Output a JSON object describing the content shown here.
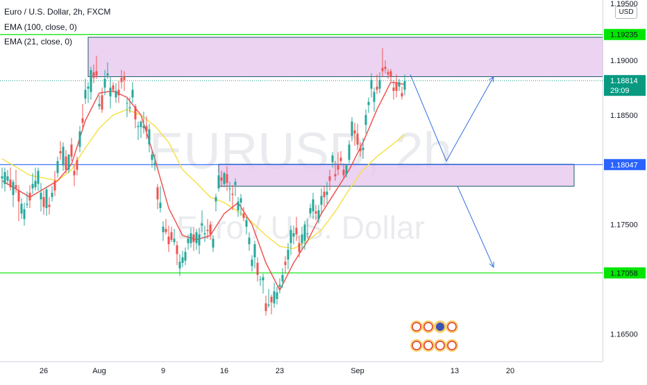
{
  "chart_data": {
    "type": "candlestick",
    "title": "Euro / U.S. Dollar, 2h, FXCM",
    "watermark_symbol": "EURUSD, 2h",
    "watermark_name": "Euro / U.S. Dollar",
    "currency": "USD",
    "indicators": [
      {
        "name": "EMA (100, close, 0)",
        "color": "#f5e14a"
      },
      {
        "name": "EMA (21, close, 0)",
        "color": "#ef5350"
      }
    ],
    "y_axis": {
      "range": [
        1.1625,
        1.1955
      ],
      "ticks": [
        "1.19000",
        "1.18500",
        "1.17500",
        "1.16500"
      ],
      "top_partial_label": "1.19500"
    },
    "x_axis": {
      "ticks": [
        {
          "label": "26",
          "idx": 15
        },
        {
          "label": "Aug",
          "idx": 35
        },
        {
          "label": "9",
          "idx": 58
        },
        {
          "label": "16",
          "idx": 80
        },
        {
          "label": "23",
          "idx": 100
        },
        {
          "label": "Sep",
          "idx": 128
        },
        {
          "label": "13",
          "idx": 163
        },
        {
          "label": "20",
          "idx": 183
        }
      ]
    },
    "horizontal_levels": [
      {
        "value": 1.19235,
        "label": "1.19235",
        "color": "#00e600"
      },
      {
        "value": 1.17058,
        "label": "1.17058",
        "color": "#00e600"
      },
      {
        "value": 1.18047,
        "label": "1.18047",
        "color": "#2962ff"
      }
    ],
    "current_price": {
      "value": 1.18814,
      "label": "1.18814",
      "countdown": "29:09",
      "color": "#089981"
    },
    "zones": [
      {
        "start_idx": 31,
        "end_idx": 220,
        "top": 1.1921,
        "bottom": 1.1885,
        "color": "#e7c8ee"
      },
      {
        "start_idx": 78,
        "end_idx": 206,
        "top": 1.1805,
        "bottom": 1.1785,
        "color": "#e7c8ee"
      }
    ],
    "projections": [
      {
        "points": [
          [
            147,
            1.1887
          ],
          [
            160,
            1.1808
          ],
          [
            177,
            1.1885
          ]
        ],
        "color": "#2f6fe0"
      },
      {
        "points": [
          [
            164,
            1.1785
          ],
          [
            177,
            1.1711
          ]
        ],
        "color": "#2f6fe0"
      }
    ],
    "candles": [
      [
        0.0,
        1.1792,
        1.1802,
        1.1783,
        1.1794
      ],
      [
        1.0,
        1.1787,
        1.1802,
        1.178,
        1.1798
      ],
      [
        2.0,
        1.179,
        1.18,
        1.1786,
        1.1794
      ],
      [
        3.0,
        1.1791,
        1.1802,
        1.1781,
        1.1784
      ],
      [
        4.0,
        1.1777,
        1.1791,
        1.1766,
        1.1789
      ],
      [
        5.0,
        1.1786,
        1.18,
        1.1779,
        1.1783
      ],
      [
        6.0,
        1.1781,
        1.1786,
        1.1753,
        1.1771
      ],
      [
        7.0,
        1.176,
        1.1774,
        1.1755,
        1.1769
      ],
      [
        8.0,
        1.1755,
        1.177,
        1.1749,
        1.1764
      ],
      [
        9.0,
        1.1768,
        1.178,
        1.1765,
        1.1769
      ],
      [
        10.0,
        1.1779,
        1.1786,
        1.1765,
        1.1772
      ],
      [
        11.0,
        1.1783,
        1.1797,
        1.1778,
        1.1787
      ],
      [
        12.0,
        1.1784,
        1.1802,
        1.1781,
        1.179
      ],
      [
        13.0,
        1.1787,
        1.1802,
        1.1781,
        1.1799
      ],
      [
        14.0,
        1.1773,
        1.1788,
        1.1762,
        1.1779
      ],
      [
        15.0,
        1.1775,
        1.1781,
        1.1759,
        1.1766
      ],
      [
        16.0,
        1.1765,
        1.1784,
        1.1758,
        1.1782
      ],
      [
        17.0,
        1.1768,
        1.1775,
        1.1759,
        1.1766
      ],
      [
        18.0,
        1.1775,
        1.1785,
        1.1771,
        1.1779
      ],
      [
        19.0,
        1.179,
        1.1799,
        1.1776,
        1.1781
      ],
      [
        20.0,
        1.1797,
        1.1812,
        1.1793,
        1.1808
      ],
      [
        21.0,
        1.1817,
        1.1826,
        1.1809,
        1.1815
      ],
      [
        22.0,
        1.1804,
        1.1825,
        1.1799,
        1.1821
      ],
      [
        23.0,
        1.1812,
        1.1818,
        1.1797,
        1.18
      ],
      [
        24.0,
        1.18,
        1.1814,
        1.1797,
        1.1814
      ],
      [
        25.0,
        1.1823,
        1.1829,
        1.1808,
        1.1812
      ],
      [
        26.0,
        1.1799,
        1.1805,
        1.1785,
        1.1795
      ],
      [
        27.0,
        1.1809,
        1.1812,
        1.1795,
        1.18
      ],
      [
        28.0,
        1.1821,
        1.184,
        1.1816,
        1.1835
      ],
      [
        29.0,
        1.1847,
        1.186,
        1.1838,
        1.1843
      ],
      [
        30.0,
        1.1865,
        1.1883,
        1.186,
        1.1873
      ],
      [
        31.0,
        1.1874,
        1.188,
        1.1861,
        1.1876
      ],
      [
        32.0,
        1.1871,
        1.1894,
        1.1864,
        1.1891
      ],
      [
        33.0,
        1.1889,
        1.1896,
        1.1879,
        1.1884
      ],
      [
        34.0,
        1.189,
        1.1904,
        1.1883,
        1.1886
      ],
      [
        35.0,
        1.1858,
        1.1868,
        1.1855,
        1.186
      ],
      [
        36.0,
        1.1868,
        1.1875,
        1.1852,
        1.1855
      ],
      [
        37.0,
        1.1875,
        1.1891,
        1.1868,
        1.1883
      ],
      [
        38.0,
        1.1886,
        1.1898,
        1.1883,
        1.1888
      ],
      [
        39.0,
        1.1867,
        1.1885,
        1.1856,
        1.1875
      ],
      [
        40.0,
        1.1877,
        1.188,
        1.187,
        1.1873
      ],
      [
        41.0,
        1.1866,
        1.1879,
        1.1861,
        1.1872
      ],
      [
        42.0,
        1.1873,
        1.1881,
        1.1861,
        1.1868
      ],
      [
        43.0,
        1.1884,
        1.1891,
        1.1874,
        1.188
      ],
      [
        44.0,
        1.1885,
        1.189,
        1.1872,
        1.1882
      ],
      [
        45.0,
        1.1861,
        1.1865,
        1.1848,
        1.1861
      ],
      [
        46.0,
        1.1856,
        1.1866,
        1.1852,
        1.1857
      ],
      [
        47.0,
        1.1866,
        1.188,
        1.1861,
        1.1873
      ],
      [
        48.0,
        1.1858,
        1.186,
        1.1838,
        1.1846
      ],
      [
        49.0,
        1.1839,
        1.1844,
        1.1827,
        1.184
      ],
      [
        50.0,
        1.1839,
        1.1845,
        1.1829,
        1.1844
      ],
      [
        51.0,
        1.1838,
        1.1853,
        1.1833,
        1.184
      ],
      [
        52.0,
        1.184,
        1.1849,
        1.1828,
        1.1835
      ],
      [
        53.0,
        1.1823,
        1.1842,
        1.1816,
        1.1837
      ],
      [
        54.0,
        1.1809,
        1.1818,
        1.1802,
        1.1814
      ],
      [
        55.0,
        1.1804,
        1.1814,
        1.1799,
        1.1806
      ],
      [
        56.0,
        1.1784,
        1.1787,
        1.1764,
        1.1773
      ],
      [
        57.0,
        1.1765,
        1.1785,
        1.1761,
        1.177
      ],
      [
        58.0,
        1.1743,
        1.1753,
        1.1735,
        1.1748
      ],
      [
        59.0,
        1.1746,
        1.1755,
        1.1741,
        1.1743
      ],
      [
        60.0,
        1.1739,
        1.1749,
        1.1725,
        1.1732
      ],
      [
        61.0,
        1.1743,
        1.1748,
        1.1734,
        1.1736
      ],
      [
        62.0,
        1.1734,
        1.1746,
        1.1731,
        1.1737
      ],
      [
        63.0,
        1.1731,
        1.1735,
        1.1713,
        1.1723
      ],
      [
        64.0,
        1.171,
        1.1723,
        1.1703,
        1.1716
      ],
      [
        65.0,
        1.1715,
        1.1726,
        1.1711,
        1.172
      ],
      [
        66.0,
        1.1717,
        1.1729,
        1.1713,
        1.1725
      ],
      [
        67.0,
        1.1733,
        1.1741,
        1.1727,
        1.1737
      ],
      [
        68.0,
        1.1733,
        1.1747,
        1.1729,
        1.1742
      ],
      [
        69.0,
        1.1741,
        1.1747,
        1.1726,
        1.1734
      ],
      [
        70.0,
        1.1733,
        1.1746,
        1.1727,
        1.1743
      ],
      [
        71.0,
        1.1731,
        1.1747,
        1.1723,
        1.1741
      ],
      [
        72.0,
        1.1749,
        1.1763,
        1.1743,
        1.1751
      ],
      [
        73.0,
        1.1741,
        1.1749,
        1.1734,
        1.1742
      ],
      [
        74.0,
        1.1745,
        1.1755,
        1.1737,
        1.1744
      ],
      [
        75.0,
        1.175,
        1.1753,
        1.1736,
        1.1741
      ],
      [
        76.0,
        1.1729,
        1.174,
        1.1725,
        1.1737
      ],
      [
        77.0,
        1.1771,
        1.1778,
        1.1762,
        1.1775
      ],
      [
        78.0,
        1.1783,
        1.1797,
        1.178,
        1.1795
      ],
      [
        79.0,
        1.1793,
        1.1799,
        1.1784,
        1.179
      ],
      [
        80.0,
        1.1787,
        1.1798,
        1.1784,
        1.1797
      ],
      [
        81.0,
        1.1796,
        1.1803,
        1.1781,
        1.1788
      ],
      [
        82.0,
        1.1783,
        1.1789,
        1.1771,
        1.1783
      ],
      [
        83.0,
        1.1778,
        1.1786,
        1.1763,
        1.1777
      ],
      [
        84.0,
        1.1786,
        1.1792,
        1.1776,
        1.1789
      ],
      [
        85.0,
        1.1763,
        1.1775,
        1.1757,
        1.1771
      ],
      [
        86.0,
        1.177,
        1.1778,
        1.1758,
        1.1774
      ],
      [
        87.0,
        1.176,
        1.1766,
        1.1753,
        1.1756
      ],
      [
        88.0,
        1.1748,
        1.1757,
        1.1741,
        1.1754
      ],
      [
        89.0,
        1.1732,
        1.1743,
        1.1726,
        1.1738
      ],
      [
        90.0,
        1.1712,
        1.1722,
        1.1707,
        1.1718
      ],
      [
        91.0,
        1.172,
        1.1735,
        1.171,
        1.1732
      ],
      [
        92.0,
        1.1715,
        1.172,
        1.1698,
        1.1704
      ],
      [
        93.0,
        1.17,
        1.1703,
        1.1694,
        1.17
      ],
      [
        94.0,
        1.1699,
        1.1705,
        1.1687,
        1.1702
      ],
      [
        95.0,
        1.1678,
        1.1685,
        1.1667,
        1.1671
      ],
      [
        96.0,
        1.1676,
        1.1691,
        1.1674,
        1.1677
      ],
      [
        97.0,
        1.1684,
        1.1686,
        1.1668,
        1.1679
      ],
      [
        98.0,
        1.1678,
        1.1697,
        1.1674,
        1.1689
      ],
      [
        99.0,
        1.1682,
        1.1693,
        1.1677,
        1.1688
      ],
      [
        100.0,
        1.1693,
        1.1701,
        1.1687,
        1.1695
      ],
      [
        101.0,
        1.1698,
        1.171,
        1.1692,
        1.1704
      ],
      [
        102.0,
        1.1716,
        1.1721,
        1.1705,
        1.1713
      ],
      [
        103.0,
        1.1718,
        1.1733,
        1.1709,
        1.1727
      ],
      [
        104.0,
        1.1733,
        1.1749,
        1.1722,
        1.1745
      ],
      [
        105.0,
        1.1739,
        1.1749,
        1.1732,
        1.1742
      ],
      [
        106.0,
        1.1747,
        1.1757,
        1.1735,
        1.1741
      ],
      [
        107.0,
        1.1733,
        1.174,
        1.172,
        1.1725
      ],
      [
        108.0,
        1.1733,
        1.1748,
        1.1727,
        1.1741
      ],
      [
        109.0,
        1.1735,
        1.1753,
        1.1727,
        1.175
      ],
      [
        110.0,
        1.1742,
        1.1755,
        1.1737,
        1.1742
      ],
      [
        111.0,
        1.176,
        1.1769,
        1.1757,
        1.1765
      ],
      [
        112.0,
        1.1762,
        1.1779,
        1.1755,
        1.1773
      ],
      [
        113.0,
        1.1762,
        1.1768,
        1.1754,
        1.176
      ],
      [
        114.0,
        1.1755,
        1.1768,
        1.1751,
        1.1763
      ],
      [
        115.0,
        1.1768,
        1.1783,
        1.1759,
        1.1776
      ],
      [
        116.0,
        1.178,
        1.1785,
        1.1766,
        1.1775
      ],
      [
        117.0,
        1.1777,
        1.1789,
        1.1769,
        1.178
      ],
      [
        118.0,
        1.1794,
        1.18,
        1.1781,
        1.179
      ],
      [
        119.0,
        1.1807,
        1.1816,
        1.1802,
        1.1813
      ],
      [
        120.0,
        1.1796,
        1.1808,
        1.179,
        1.1794
      ],
      [
        121.0,
        1.1804,
        1.1816,
        1.1795,
        1.18
      ],
      [
        122.0,
        1.1811,
        1.1817,
        1.1804,
        1.1808
      ],
      [
        123.0,
        1.18,
        1.1806,
        1.1792,
        1.1795
      ],
      [
        124.0,
        1.1796,
        1.1805,
        1.1793,
        1.1804
      ],
      [
        125.0,
        1.1809,
        1.1827,
        1.1806,
        1.1823
      ],
      [
        126.0,
        1.1831,
        1.1848,
        1.1826,
        1.1844
      ],
      [
        127.0,
        1.1836,
        1.1843,
        1.1822,
        1.1833
      ],
      [
        128.0,
        1.1833,
        1.1842,
        1.1818,
        1.1823
      ],
      [
        129.0,
        1.182,
        1.1825,
        1.1812,
        1.1817
      ],
      [
        130.0,
        1.1818,
        1.1829,
        1.181,
        1.182
      ],
      [
        131.0,
        1.1841,
        1.1855,
        1.1833,
        1.185
      ],
      [
        132.0,
        1.1859,
        1.1866,
        1.1852,
        1.1862
      ],
      [
        133.0,
        1.1874,
        1.1888,
        1.1866,
        1.1882
      ],
      [
        134.0,
        1.1862,
        1.1875,
        1.1853,
        1.1871
      ],
      [
        135.0,
        1.1876,
        1.1887,
        1.1869,
        1.1873
      ],
      [
        136.0,
        1.1874,
        1.1889,
        1.187,
        1.1882
      ],
      [
        137.0,
        1.1893,
        1.1911,
        1.1885,
        1.189
      ],
      [
        138.0,
        1.1894,
        1.19,
        1.1888,
        1.1892
      ],
      [
        139.0,
        1.1889,
        1.1892,
        1.1883,
        1.1887
      ],
      [
        140.0,
        1.189,
        1.1892,
        1.1881,
        1.1885
      ],
      [
        141.0,
        1.1875,
        1.1882,
        1.1864,
        1.1872
      ],
      [
        142.0,
        1.188,
        1.1887,
        1.1866,
        1.1872
      ],
      [
        143.0,
        1.1876,
        1.1883,
        1.1872,
        1.188
      ],
      [
        144.0,
        1.187,
        1.1876,
        1.1864,
        1.1867
      ],
      [
        145.0,
        1.1873,
        1.1887,
        1.1868,
        1.1881
      ]
    ],
    "ema21": [
      [
        0,
        1.179
      ],
      [
        10,
        1.1775
      ],
      [
        20,
        1.179
      ],
      [
        25,
        1.1805
      ],
      [
        30,
        1.1845
      ],
      [
        35,
        1.187
      ],
      [
        40,
        1.1872
      ],
      [
        45,
        1.1866
      ],
      [
        50,
        1.185
      ],
      [
        55,
        1.181
      ],
      [
        60,
        1.1765
      ],
      [
        65,
        1.174
      ],
      [
        70,
        1.1736
      ],
      [
        75,
        1.174
      ],
      [
        80,
        1.176
      ],
      [
        85,
        1.177
      ],
      [
        90,
        1.175
      ],
      [
        95,
        1.1715
      ],
      [
        100,
        1.169
      ],
      [
        105,
        1.1715
      ],
      [
        110,
        1.1735
      ],
      [
        115,
        1.176
      ],
      [
        120,
        1.178
      ],
      [
        125,
        1.18
      ],
      [
        130,
        1.1825
      ],
      [
        135,
        1.1855
      ],
      [
        140,
        1.188
      ],
      [
        145,
        1.1878
      ]
    ],
    "ema100": [
      [
        0,
        1.181
      ],
      [
        10,
        1.1795
      ],
      [
        20,
        1.179
      ],
      [
        25,
        1.18
      ],
      [
        30,
        1.182
      ],
      [
        35,
        1.1838
      ],
      [
        40,
        1.185
      ],
      [
        45,
        1.1855
      ],
      [
        50,
        1.185
      ],
      [
        55,
        1.184
      ],
      [
        60,
        1.1825
      ],
      [
        65,
        1.18
      ],
      [
        70,
        1.1788
      ],
      [
        75,
        1.1775
      ],
      [
        80,
        1.177
      ],
      [
        85,
        1.1762
      ],
      [
        90,
        1.1752
      ],
      [
        95,
        1.174
      ],
      [
        100,
        1.173
      ],
      [
        105,
        1.1728
      ],
      [
        110,
        1.1735
      ],
      [
        115,
        1.1745
      ],
      [
        120,
        1.1762
      ],
      [
        125,
        1.1782
      ],
      [
        130,
        1.18
      ],
      [
        135,
        1.1812
      ],
      [
        140,
        1.1822
      ],
      [
        145,
        1.1832
      ]
    ]
  }
}
